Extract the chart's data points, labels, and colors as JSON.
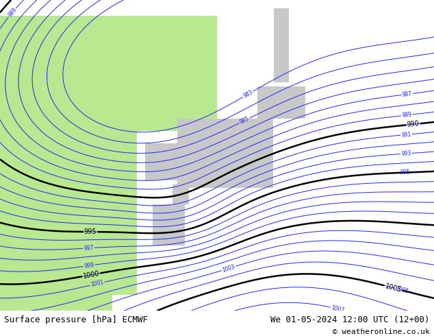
{
  "title_left": "Surface pressure [hPa] ECMWF",
  "title_right": "We 01-05-2024 12:00 UTC (12+00)",
  "copyright": "© weatheronline.co.uk",
  "figsize": [
    6.34,
    4.9
  ],
  "dpi": 100,
  "sea_color": "#c8d8e8",
  "land_color_green": "#b8e890",
  "land_color_gray": "#c8c8c8",
  "contour_blue": "#2222ff",
  "contour_red": "#ff0000",
  "contour_black": "#000000",
  "bottom_bar_color": "#e0e0e0",
  "bottom_text_color": "#000000",
  "lon_min": 108,
  "lon_max": 162,
  "lat_min": 18,
  "lat_max": 56,
  "title_fontsize": 9,
  "copyright_fontsize": 8
}
